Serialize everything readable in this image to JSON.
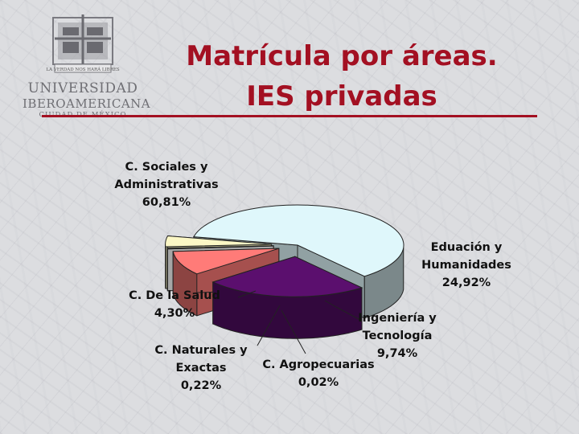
{
  "header": {
    "title_line1": "Matrícula por áreas.",
    "title_line2": "IES privadas",
    "title_color": "#a31022"
  },
  "logo": {
    "line1": "UNIVERSIDAD",
    "line2": "IBEROAMERICANA",
    "line3": "CIUDAD DE MÉXICO",
    "motto": "LA VERDAD NOS HARÁ LIBRES"
  },
  "chart_data": {
    "type": "pie",
    "title": "Matrícula por áreas. IES privadas",
    "slices": [
      {
        "label_lines": [
          "C. Sociales y",
          "Administrativas",
          "60,81%"
        ],
        "value": 60.81,
        "color": "#dff7fb",
        "exploded": false
      },
      {
        "label_lines": [
          "Eduación y",
          "Humanidades",
          "24,92%"
        ],
        "value": 24.92,
        "color": "#5b0f6e",
        "exploded": true
      },
      {
        "label_lines": [
          "Ingeniería y",
          "Tecnología",
          "9,74%"
        ],
        "value": 9.74,
        "color": "#ff7b78",
        "exploded": true
      },
      {
        "label_lines": [
          "C. Agropecuarias",
          "0,02%"
        ],
        "value": 0.02,
        "color": "#ffffff",
        "exploded": true
      },
      {
        "label_lines": [
          "C. Naturales y",
          "Exactas",
          "0,22%"
        ],
        "value": 0.22,
        "color": "#2c2f9a",
        "exploded": true
      },
      {
        "label_lines": [
          "C. De la Salud",
          "4,30%"
        ],
        "value": 4.3,
        "color": "#fbf7c5",
        "exploded": true
      }
    ]
  }
}
